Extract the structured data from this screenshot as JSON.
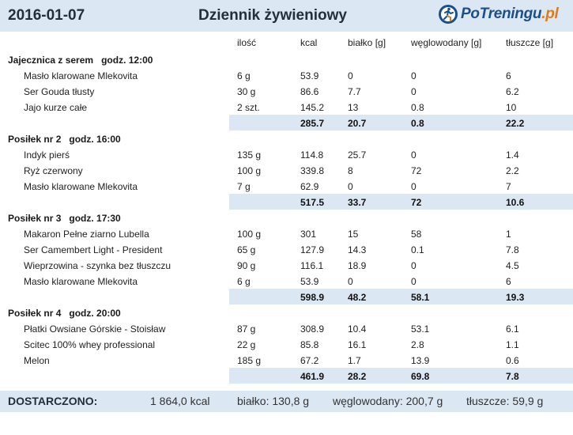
{
  "header": {
    "date": "2016-01-07",
    "title": "Dziennik żywieniowy",
    "brand": "PoTreningu",
    "brand_tld": ".pl"
  },
  "columns": {
    "qty": "ilość",
    "kcal": "kcal",
    "protein": "białko [g]",
    "carbs": "węglowodany [g]",
    "fat": "tłuszcze [g]"
  },
  "meals": [
    {
      "name": "Jajecznica z serem",
      "time": "godz. 12:00",
      "items": [
        {
          "name": "Masło klarowane Mlekovita",
          "qty": "6 g",
          "kcal": "53.9",
          "protein": "0",
          "carbs": "0",
          "fat": "6"
        },
        {
          "name": "Ser Gouda tłusty",
          "qty": "30 g",
          "kcal": "86.6",
          "protein": "7.7",
          "carbs": "0",
          "fat": "6.2"
        },
        {
          "name": "Jajo kurze całe",
          "qty": "2 szt.",
          "kcal": "145.2",
          "protein": "13",
          "carbs": "0.8",
          "fat": "10"
        }
      ],
      "total": {
        "kcal": "285.7",
        "protein": "20.7",
        "carbs": "0.8",
        "fat": "22.2"
      }
    },
    {
      "name": "Posiłek nr 2",
      "time": "godz. 16:00",
      "items": [
        {
          "name": "Indyk pierś",
          "qty": "135 g",
          "kcal": "114.8",
          "protein": "25.7",
          "carbs": "0",
          "fat": "1.4"
        },
        {
          "name": "Ryż czerwony",
          "qty": "100 g",
          "kcal": "339.8",
          "protein": "8",
          "carbs": "72",
          "fat": "2.2"
        },
        {
          "name": "Masło klarowane Mlekovita",
          "qty": "7 g",
          "kcal": "62.9",
          "protein": "0",
          "carbs": "0",
          "fat": "7"
        }
      ],
      "total": {
        "kcal": "517.5",
        "protein": "33.7",
        "carbs": "72",
        "fat": "10.6"
      }
    },
    {
      "name": "Posiłek nr 3",
      "time": "godz. 17:30",
      "items": [
        {
          "name": "Makaron Pełne ziarno  Lubella",
          "qty": "100 g",
          "kcal": "301",
          "protein": "15",
          "carbs": "58",
          "fat": "1"
        },
        {
          "name": "Ser Camembert Light - President",
          "qty": "65 g",
          "kcal": "127.9",
          "protein": "14.3",
          "carbs": "0.1",
          "fat": "7.8"
        },
        {
          "name": "Wieprzowina - szynka bez tłuszczu",
          "qty": "90 g",
          "kcal": "116.1",
          "protein": "18.9",
          "carbs": "0",
          "fat": "4.5"
        },
        {
          "name": "Masło klarowane Mlekovita",
          "qty": "6 g",
          "kcal": "53.9",
          "protein": "0",
          "carbs": "0",
          "fat": "6"
        }
      ],
      "total": {
        "kcal": "598.9",
        "protein": "48.2",
        "carbs": "58.1",
        "fat": "19.3"
      }
    },
    {
      "name": "Posiłek nr 4",
      "time": "godz. 20:00",
      "items": [
        {
          "name": "Płatki Owsiane Górskie - Stoisław",
          "qty": "87 g",
          "kcal": "308.9",
          "protein": "10.4",
          "carbs": "53.1",
          "fat": "6.1"
        },
        {
          "name": "Scitec 100% whey professional",
          "qty": "22 g",
          "kcal": "85.8",
          "protein": "16.1",
          "carbs": "2.8",
          "fat": "1.1"
        },
        {
          "name": "Melon",
          "qty": "185 g",
          "kcal": "67.2",
          "protein": "1.7",
          "carbs": "13.9",
          "fat": "0.6"
        }
      ],
      "total": {
        "kcal": "461.9",
        "protein": "28.2",
        "carbs": "69.8",
        "fat": "7.8"
      }
    }
  ],
  "summary": {
    "label": "DOSTARCZONO:",
    "kcal": "1 864,0 kcal",
    "protein": "białko: 130,8 g",
    "carbs": "węglowodany: 200,7 g",
    "fat": "tłuszcze: 59,9 g"
  }
}
